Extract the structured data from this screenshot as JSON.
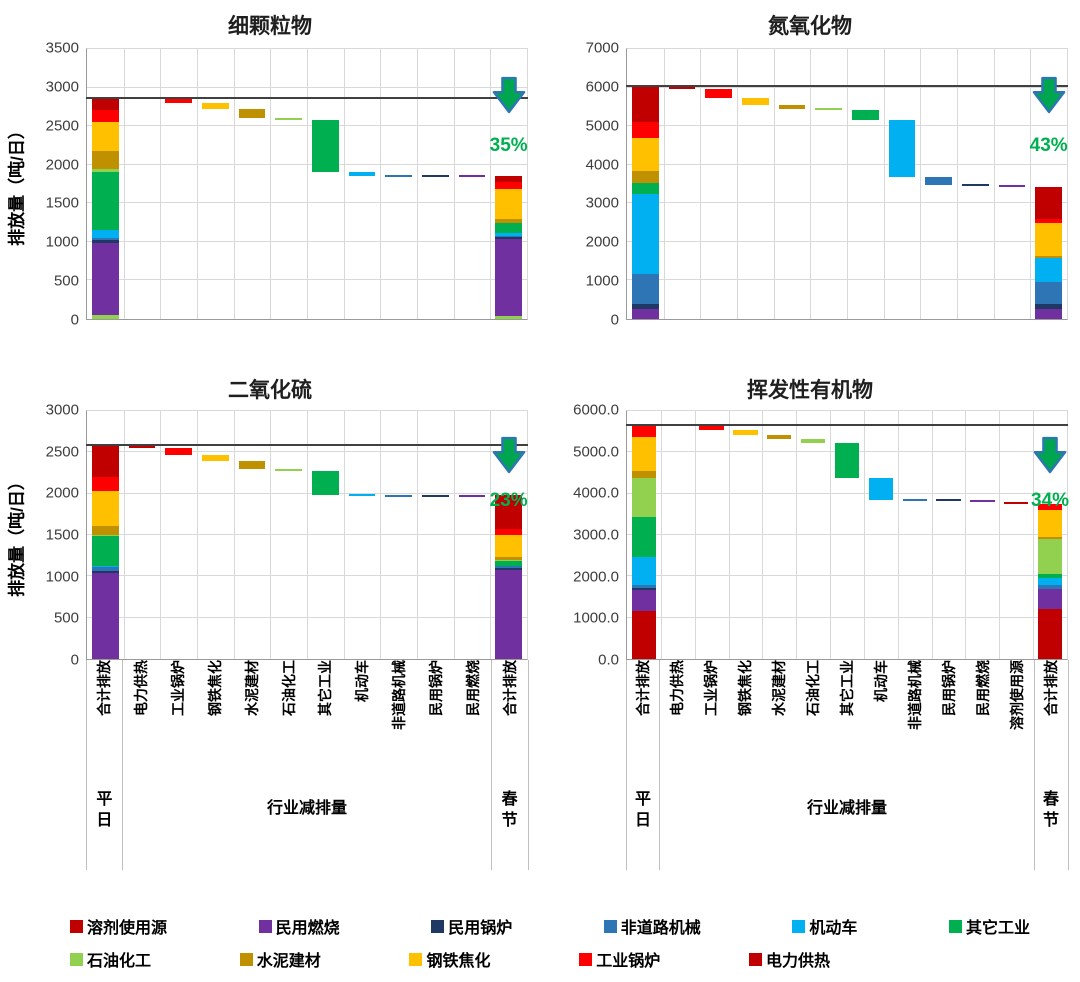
{
  "y_axis_title": "排放量（吨/日）",
  "palette": {
    "darkred": "#C00000",
    "red": "#FF0000",
    "yellow": "#FFC000",
    "olive": "#BF9000",
    "lightgreen": "#92D050",
    "green": "#00B050",
    "lightblue": "#00B0F0",
    "blue": "#2E75B6",
    "navy": "#1F3864",
    "purple": "#7030A0"
  },
  "arrow": {
    "fill": "#00A550",
    "stroke": "#2E75B6"
  },
  "percent_color": "#00B050",
  "chart_data": [
    {
      "type": "waterfall-stacked-bar",
      "title": "细颗粒物",
      "percent": "35%",
      "ylabel": "排放量（吨/日）",
      "ylim": [
        0,
        3500
      ],
      "ystep": 500,
      "y_decimals": 0,
      "y_tick_labels": [
        "0",
        "500",
        "1000",
        "1500",
        "2000",
        "2500",
        "3000",
        "3500"
      ],
      "grid": true,
      "x_labels_visible": false,
      "x_group_labels": {
        "left": "平日",
        "center": "行业减排量",
        "right": "春节"
      },
      "categories": [
        "合计排放",
        "电力供热",
        "工业锅炉",
        "钢铁焦化",
        "水泥建材",
        "石油化工",
        "其它工业",
        "机动车",
        "非道路机械",
        "民用锅炉",
        "民用燃烧",
        "合计排放"
      ],
      "baseline_total": 2870,
      "final_total": 1855,
      "start_stack": [
        {
          "cat": "石油化工",
          "c": "lightgreen",
          "v": 50
        },
        {
          "cat": "民用燃烧",
          "c": "purple",
          "v": 930
        },
        {
          "cat": "民用锅炉",
          "c": "navy",
          "v": 40
        },
        {
          "cat": "非道路机械",
          "c": "blue",
          "v": 25
        },
        {
          "cat": "机动车",
          "c": "lightblue",
          "v": 105
        },
        {
          "cat": "其它工业",
          "c": "green",
          "v": 750
        },
        {
          "cat": "石油化工",
          "c": "lightgreen",
          "v": 45
        },
        {
          "cat": "水泥建材",
          "c": "olive",
          "v": 230
        },
        {
          "cat": "钢铁焦化",
          "c": "yellow",
          "v": 380
        },
        {
          "cat": "工业锅炉",
          "c": "red",
          "v": 150
        },
        {
          "cat": "电力供热",
          "c": "darkred",
          "v": 165
        }
      ],
      "steps": [
        {
          "cat": "电力供热",
          "c": "darkred",
          "v": 20
        },
        {
          "cat": "工业锅炉",
          "c": "red",
          "v": 50
        },
        {
          "cat": "钢铁焦化",
          "c": "yellow",
          "v": 80
        },
        {
          "cat": "水泥建材",
          "c": "olive",
          "v": 115
        },
        {
          "cat": "石油化工",
          "c": "lightgreen",
          "v": 20
        },
        {
          "cat": "其它工业",
          "c": "green",
          "v": 680
        },
        {
          "cat": "机动车",
          "c": "lightblue",
          "v": 50
        },
        {
          "cat": "非道路机械",
          "c": "blue",
          "v": 10
        },
        {
          "cat": "民用锅炉",
          "c": "navy",
          "v": 5
        },
        {
          "cat": "民用燃烧",
          "c": "purple",
          "v": -15
        }
      ],
      "end_stack": [
        {
          "cat": "石油化工",
          "c": "lightgreen",
          "v": 40
        },
        {
          "cat": "民用燃烧",
          "c": "purple",
          "v": 1000
        },
        {
          "cat": "民用锅炉",
          "c": "navy",
          "v": 25
        },
        {
          "cat": "非道路机械",
          "c": "blue",
          "v": 15
        },
        {
          "cat": "机动车",
          "c": "lightblue",
          "v": 40
        },
        {
          "cat": "其它工业",
          "c": "green",
          "v": 130
        },
        {
          "cat": "水泥建材",
          "c": "olive",
          "v": 50
        },
        {
          "cat": "钢铁焦化",
          "c": "yellow",
          "v": 380
        },
        {
          "cat": "工业锅炉",
          "c": "red",
          "v": 90
        },
        {
          "cat": "电力供热",
          "c": "darkred",
          "v": 85
        }
      ]
    },
    {
      "type": "waterfall-stacked-bar",
      "title": "氮氧化物",
      "percent": "43%",
      "ylabel": "",
      "ylim": [
        0,
        7000
      ],
      "ystep": 1000,
      "y_decimals": 0,
      "y_tick_labels": [
        "0",
        "1000",
        "2000",
        "3000",
        "4000",
        "5000",
        "6000",
        "7000"
      ],
      "grid": true,
      "x_labels_visible": false,
      "x_group_labels": {
        "left": "平日",
        "center": "行业减排量",
        "right": "春节"
      },
      "categories": [
        "合计排放",
        "电力供热",
        "工业锅炉",
        "钢铁焦化",
        "水泥建材",
        "石油化工",
        "其它工业",
        "机动车",
        "非道路机械",
        "民用锅炉",
        "民用燃烧",
        "合计排放"
      ],
      "baseline_total": 6050,
      "final_total": 3430,
      "start_stack": [
        {
          "cat": "民用燃烧",
          "c": "purple",
          "v": 270
        },
        {
          "cat": "民用锅炉",
          "c": "navy",
          "v": 110
        },
        {
          "cat": "非道路机械",
          "c": "blue",
          "v": 800
        },
        {
          "cat": "机动车",
          "c": "lightblue",
          "v": 2070
        },
        {
          "cat": "其它工业",
          "c": "green",
          "v": 280
        },
        {
          "cat": "水泥建材",
          "c": "olive",
          "v": 300
        },
        {
          "cat": "钢铁焦化",
          "c": "yellow",
          "v": 870
        },
        {
          "cat": "工业锅炉",
          "c": "red",
          "v": 400
        },
        {
          "cat": "电力供热",
          "c": "darkred",
          "v": 950
        }
      ],
      "steps": [
        {
          "cat": "电力供热",
          "c": "darkred",
          "v": 80
        },
        {
          "cat": "工业锅炉",
          "c": "red",
          "v": 240
        },
        {
          "cat": "钢铁焦化",
          "c": "yellow",
          "v": 170
        },
        {
          "cat": "水泥建材",
          "c": "olive",
          "v": 110
        },
        {
          "cat": "石油化工",
          "c": "lightgreen",
          "v": 20
        },
        {
          "cat": "其它工业",
          "c": "green",
          "v": 280
        },
        {
          "cat": "机动车",
          "c": "lightblue",
          "v": 1470
        },
        {
          "cat": "非道路机械",
          "c": "blue",
          "v": 210
        },
        {
          "cat": "民用锅炉",
          "c": "navy",
          "v": 30
        },
        {
          "cat": "民用燃烧",
          "c": "purple",
          "v": 10
        }
      ],
      "end_stack": [
        {
          "cat": "民用燃烧",
          "c": "purple",
          "v": 250
        },
        {
          "cat": "民用锅炉",
          "c": "navy",
          "v": 130
        },
        {
          "cat": "非道路机械",
          "c": "blue",
          "v": 570
        },
        {
          "cat": "机动车",
          "c": "lightblue",
          "v": 620
        },
        {
          "cat": "水泥建材",
          "c": "olive",
          "v": 60
        },
        {
          "cat": "钢铁焦化",
          "c": "yellow",
          "v": 860
        },
        {
          "cat": "工业锅炉",
          "c": "red",
          "v": 110
        },
        {
          "cat": "电力供热",
          "c": "darkred",
          "v": 830
        }
      ]
    },
    {
      "type": "waterfall-stacked-bar",
      "title": "二氧化硫",
      "percent": "23%",
      "ylabel": "排放量（吨/日）",
      "ylim": [
        0,
        3000
      ],
      "ystep": 500,
      "y_decimals": 0,
      "y_tick_labels": [
        "0",
        "500",
        "1000",
        "1500",
        "2000",
        "2500",
        "3000"
      ],
      "grid": true,
      "x_labels_visible": true,
      "x_group_labels": {
        "left": "平日",
        "center": "行业减排量",
        "right": "春节"
      },
      "categories": [
        "合计排放",
        "电力供热",
        "工业锅炉",
        "钢铁焦化",
        "水泥建材",
        "石油化工",
        "其它工业",
        "机动车",
        "非道路机械",
        "民用锅炉",
        "民用燃烧",
        "合计排放"
      ],
      "baseline_total": 2590,
      "final_total": 1990,
      "start_stack": [
        {
          "cat": "民用燃烧",
          "c": "purple",
          "v": 1040
        },
        {
          "cat": "民用锅炉",
          "c": "navy",
          "v": 30
        },
        {
          "cat": "非道路机械",
          "c": "blue",
          "v": 45
        },
        {
          "cat": "机动车",
          "c": "lightblue",
          "v": 10
        },
        {
          "cat": "其它工业",
          "c": "green",
          "v": 360
        },
        {
          "cat": "石油化工",
          "c": "lightgreen",
          "v": 15
        },
        {
          "cat": "水泥建材",
          "c": "olive",
          "v": 110
        },
        {
          "cat": "钢铁焦化",
          "c": "yellow",
          "v": 420
        },
        {
          "cat": "工业锅炉",
          "c": "red",
          "v": 170
        },
        {
          "cat": "电力供热",
          "c": "darkred",
          "v": 390
        }
      ],
      "steps": [
        {
          "cat": "电力供热",
          "c": "darkred",
          "v": 35
        },
        {
          "cat": "工业锅炉",
          "c": "red",
          "v": 90
        },
        {
          "cat": "钢铁焦化",
          "c": "yellow",
          "v": 75
        },
        {
          "cat": "水泥建材",
          "c": "olive",
          "v": 95
        },
        {
          "cat": "石油化工",
          "c": "lightgreen",
          "v": 15
        },
        {
          "cat": "其它工业",
          "c": "green",
          "v": 290
        },
        {
          "cat": "机动车",
          "c": "lightblue",
          "v": 15
        },
        {
          "cat": "非道路机械",
          "c": "blue",
          "v": 10
        },
        {
          "cat": "民用锅炉",
          "c": "navy",
          "v": 5
        },
        {
          "cat": "民用燃烧",
          "c": "purple",
          "v": -30
        }
      ],
      "end_stack": [
        {
          "cat": "民用燃烧",
          "c": "purple",
          "v": 1080
        },
        {
          "cat": "民用锅炉",
          "c": "navy",
          "v": 25
        },
        {
          "cat": "非道路机械",
          "c": "blue",
          "v": 15
        },
        {
          "cat": "其它工业",
          "c": "green",
          "v": 70
        },
        {
          "cat": "石油化工",
          "c": "lightgreen",
          "v": 10
        },
        {
          "cat": "水泥建材",
          "c": "olive",
          "v": 30
        },
        {
          "cat": "钢铁焦化",
          "c": "yellow",
          "v": 270
        },
        {
          "cat": "工业锅炉",
          "c": "red",
          "v": 70
        },
        {
          "cat": "电力供热",
          "c": "darkred",
          "v": 420
        }
      ]
    },
    {
      "type": "waterfall-stacked-bar",
      "title": "挥发性有机物",
      "percent": "34%",
      "ylabel": "",
      "ylim": [
        0,
        6000
      ],
      "ystep": 1000,
      "y_decimals": 1,
      "y_tick_labels": [
        "0.0",
        "1000.0",
        "2000.0",
        "3000.0",
        "4000.0",
        "5000.0",
        "6000.0"
      ],
      "grid": true,
      "x_labels_visible": true,
      "x_group_labels": {
        "left": "平日",
        "center": "行业减排量",
        "right": "春节"
      },
      "categories": [
        "合计排放",
        "电力供热",
        "工业锅炉",
        "钢铁焦化",
        "水泥建材",
        "石油化工",
        "其它工业",
        "机动车",
        "非道路机械",
        "民用锅炉",
        "民用燃烧",
        "溶剂使用源",
        "合计排放"
      ],
      "baseline_total": 5650,
      "final_total": 3750,
      "start_stack": [
        {
          "cat": "溶剂使用源",
          "c": "darkred",
          "v": 1150
        },
        {
          "cat": "民用燃烧",
          "c": "purple",
          "v": 520
        },
        {
          "cat": "民用锅炉",
          "c": "navy",
          "v": 50
        },
        {
          "cat": "非道路机械",
          "c": "blue",
          "v": 80
        },
        {
          "cat": "机动车",
          "c": "lightblue",
          "v": 670
        },
        {
          "cat": "其它工业",
          "c": "green",
          "v": 970
        },
        {
          "cat": "石油化工",
          "c": "lightgreen",
          "v": 940
        },
        {
          "cat": "水泥建材",
          "c": "olive",
          "v": 170
        },
        {
          "cat": "钢铁焦化",
          "c": "yellow",
          "v": 810
        },
        {
          "cat": "工业锅炉",
          "c": "red",
          "v": 290
        }
      ],
      "steps": [
        {
          "cat": "电力供热",
          "c": "darkred",
          "v": 20
        },
        {
          "cat": "工业锅炉",
          "c": "red",
          "v": 90
        },
        {
          "cat": "钢铁焦化",
          "c": "yellow",
          "v": 110
        },
        {
          "cat": "水泥建材",
          "c": "olive",
          "v": 100
        },
        {
          "cat": "石油化工",
          "c": "lightgreen",
          "v": 100
        },
        {
          "cat": "其它工业",
          "c": "green",
          "v": 850
        },
        {
          "cat": "机动车",
          "c": "lightblue",
          "v": 530
        },
        {
          "cat": "非道路机械",
          "c": "blue",
          "v": 20
        },
        {
          "cat": "民用锅炉",
          "c": "navy",
          "v": 10
        },
        {
          "cat": "民用燃烧",
          "c": "purple",
          "v": 10
        },
        {
          "cat": "溶剂使用源",
          "c": "darkred",
          "v": 60
        }
      ],
      "end_stack": [
        {
          "cat": "溶剂使用源",
          "c": "darkred",
          "v": 1200
        },
        {
          "cat": "民用燃烧",
          "c": "purple",
          "v": 500
        },
        {
          "cat": "非道路机械",
          "c": "blue",
          "v": 100
        },
        {
          "cat": "机动车",
          "c": "lightblue",
          "v": 150
        },
        {
          "cat": "其它工业",
          "c": "green",
          "v": 100
        },
        {
          "cat": "石油化工",
          "c": "lightgreen",
          "v": 850
        },
        {
          "cat": "水泥建材",
          "c": "olive",
          "v": 50
        },
        {
          "cat": "钢铁焦化",
          "c": "yellow",
          "v": 650
        },
        {
          "cat": "工业锅炉",
          "c": "red",
          "v": 150
        }
      ]
    }
  ],
  "legend": {
    "rows": [
      [
        {
          "label": "溶剂使用源",
          "c": "darkred"
        },
        {
          "label": "民用燃烧",
          "c": "purple"
        },
        {
          "label": "民用锅炉",
          "c": "navy"
        },
        {
          "label": "非道路机械",
          "c": "blue"
        },
        {
          "label": "机动车",
          "c": "lightblue"
        },
        {
          "label": "其它工业",
          "c": "green"
        }
      ],
      [
        {
          "label": "石油化工",
          "c": "lightgreen"
        },
        {
          "label": "水泥建材",
          "c": "olive"
        },
        {
          "label": "钢铁焦化",
          "c": "yellow"
        },
        {
          "label": "工业锅炉",
          "c": "red"
        },
        {
          "label": "电力供热",
          "c": "darkred"
        }
      ]
    ]
  }
}
